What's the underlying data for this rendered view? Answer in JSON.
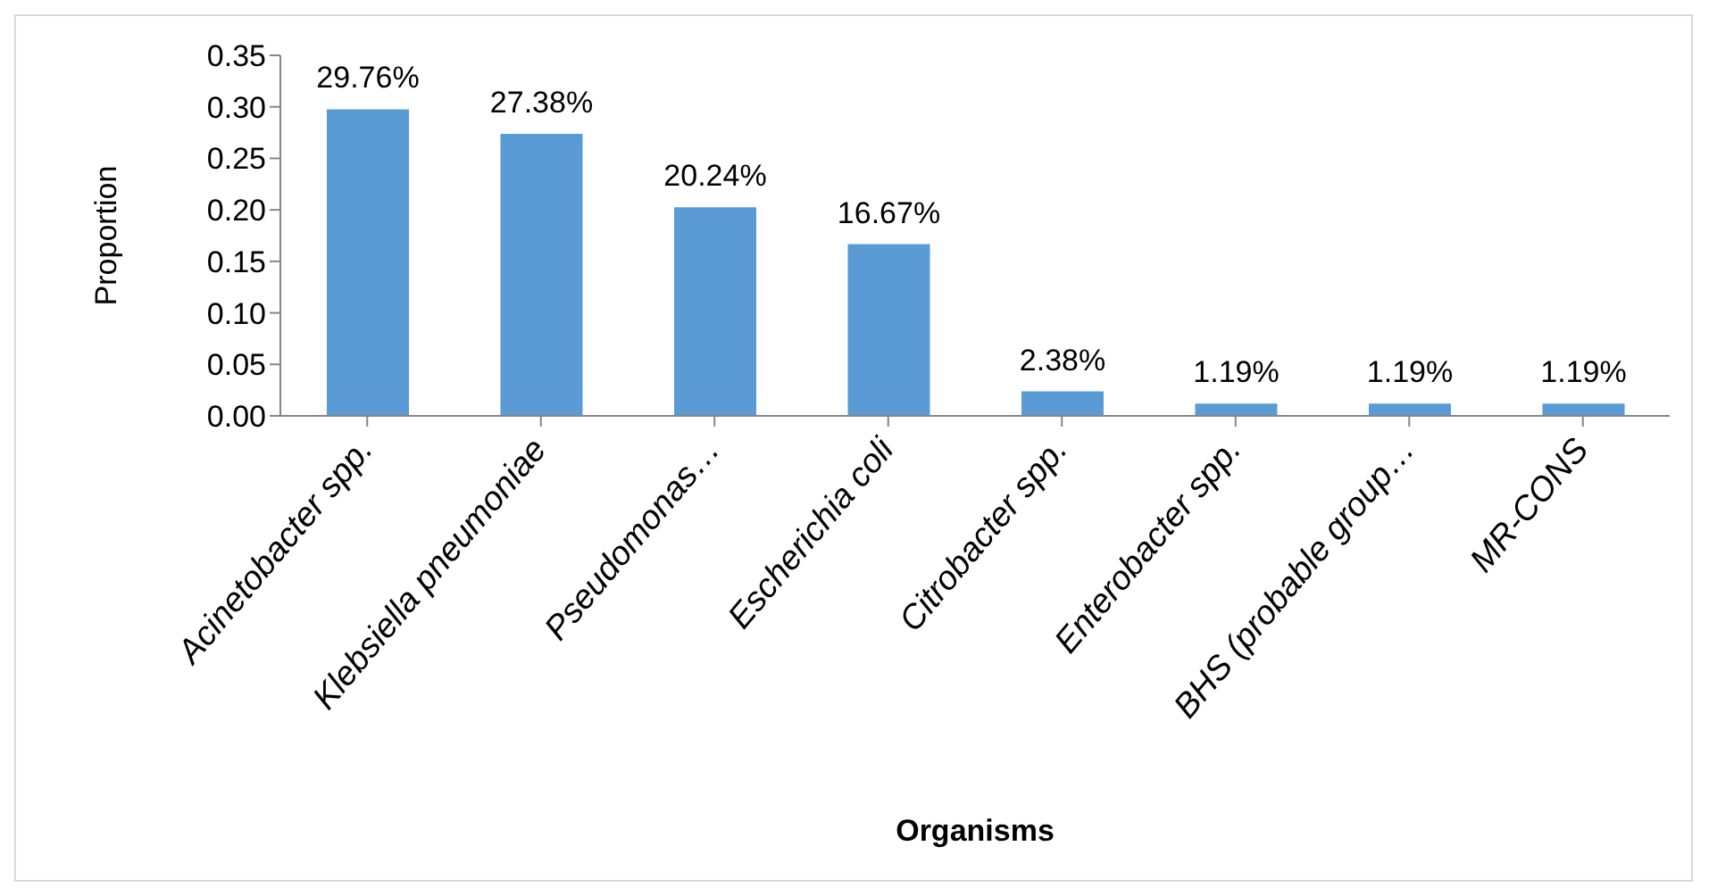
{
  "chart_data": {
    "type": "bar",
    "xlabel": "Organisms",
    "ylabel": "Proportion",
    "categories": [
      "Acinetobacter spp.",
      "Klebsiella pneumoniae",
      "Pseudomonas…",
      "Escherichia coli",
      "Citrobacter spp.",
      "Enterobacter spp.",
      "BHS (probable group…",
      "MR-CONS"
    ],
    "values": [
      0.2976,
      0.2738,
      0.2024,
      0.1667,
      0.0238,
      0.0119,
      0.0119,
      0.0119
    ],
    "value_labels": [
      "29.76%",
      "27.38%",
      "20.24%",
      "16.67%",
      "2.38%",
      "1.19%",
      "1.19%",
      "1.19%"
    ],
    "color": "#5b9bd5",
    "ylim": [
      0,
      0.35
    ],
    "yticks": [
      {
        "value": 0,
        "label": "0.00"
      },
      {
        "value": 0.05,
        "label": "0.05"
      },
      {
        "value": 0.1,
        "label": "0.10"
      },
      {
        "value": 0.15,
        "label": "0.15"
      },
      {
        "value": 0.2,
        "label": "0.20"
      },
      {
        "value": 0.25,
        "label": "0.25"
      },
      {
        "value": 0.3,
        "label": "0.30"
      },
      {
        "value": 0.35,
        "label": "0.35"
      }
    ],
    "grid": false,
    "legend": false
  }
}
